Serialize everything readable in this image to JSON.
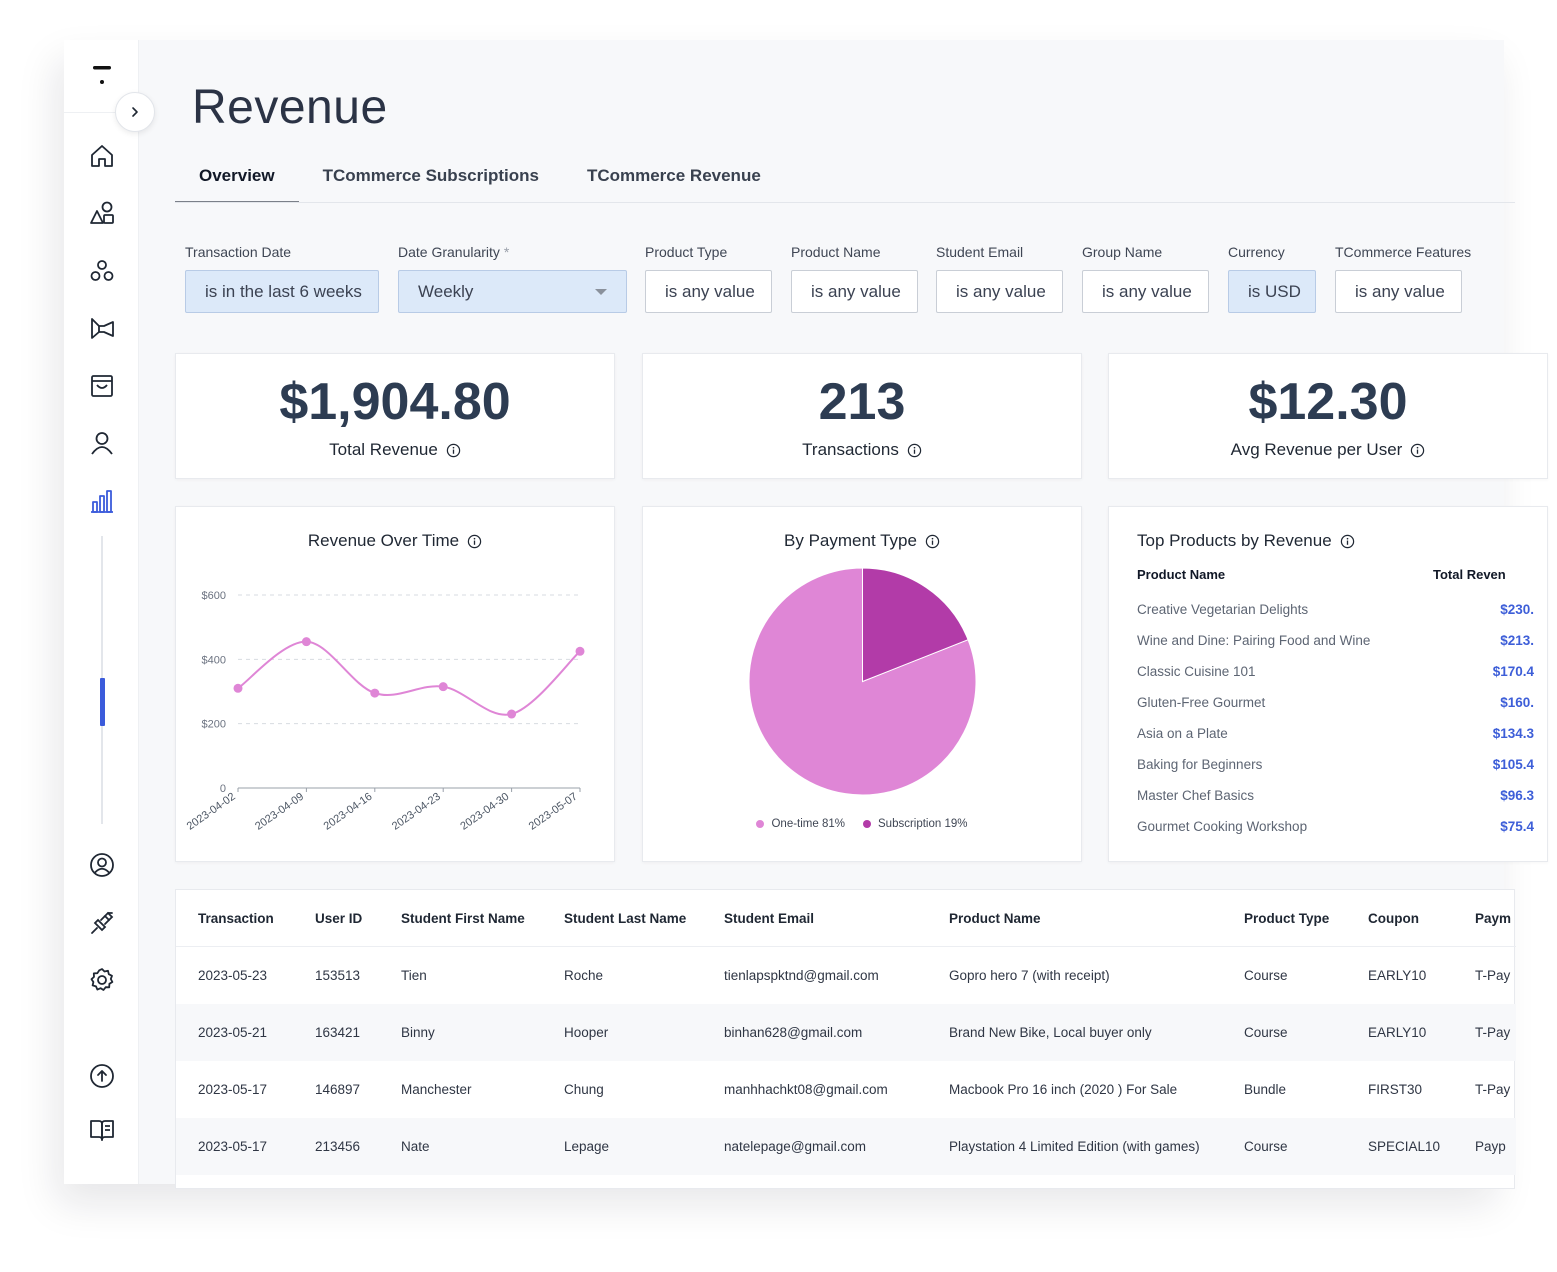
{
  "page": {
    "title": "Revenue"
  },
  "tabs": [
    {
      "label": "Overview",
      "active": true
    },
    {
      "label": "TCommerce Subscriptions",
      "active": false
    },
    {
      "label": "TCommerce Revenue",
      "active": false
    }
  ],
  "filters": [
    {
      "label": "Transaction Date",
      "required": "",
      "value": "is in the last 6 weeks",
      "active": true
    },
    {
      "label": "Date Granularity",
      "required": "*",
      "value": "Weekly",
      "active": true
    },
    {
      "label": "Product Type",
      "required": "",
      "value": "is any value",
      "active": false
    },
    {
      "label": "Product Name",
      "required": "",
      "value": "is any value",
      "active": false
    },
    {
      "label": "Student Email",
      "required": "",
      "value": "is any value",
      "active": false
    },
    {
      "label": "Group Name",
      "required": "",
      "value": "is any value",
      "active": false
    },
    {
      "label": "Currency",
      "required": "",
      "value": "is USD",
      "active": true
    },
    {
      "label": "TCommerce Features",
      "required": "",
      "value": "is any value",
      "active": false
    }
  ],
  "kpis": [
    {
      "value": "$1,904.80",
      "label": "Total Revenue"
    },
    {
      "value": "213",
      "label": "Transactions"
    },
    {
      "value": "$12.30",
      "label": "Avg Revenue per User"
    }
  ],
  "revenue_chart": {
    "title": "Revenue Over Time"
  },
  "payment_chart": {
    "title": "By Payment Type",
    "legend": [
      {
        "label": "One-time 81%",
        "color": "#df86d6"
      },
      {
        "label": "Subscription 19%",
        "color": "#b23ba8"
      }
    ]
  },
  "chart_data": [
    {
      "type": "line",
      "title": "Revenue Over Time",
      "x": [
        "2023-04-02",
        "2023-04-09",
        "2023-04-16",
        "2023-04-23",
        "2023-04-30",
        "2023-05-07"
      ],
      "values": [
        310,
        455,
        295,
        315,
        230,
        425
      ],
      "ytick_labels": [
        "0",
        "$200",
        "$400",
        "$600"
      ],
      "ylim": [
        0,
        600
      ],
      "grid": true,
      "color": "#df86d6"
    },
    {
      "type": "pie",
      "title": "By Payment Type",
      "categories": [
        "One-time",
        "Subscription"
      ],
      "values": [
        81,
        19
      ],
      "colors": [
        "#df86d6",
        "#b23ba8"
      ]
    }
  ],
  "top_products": {
    "title": "Top Products by Revenue",
    "col_name": "Product Name",
    "col_value": "Total Reven",
    "rows": [
      {
        "name": "Creative Vegetarian Delights",
        "value": "$230."
      },
      {
        "name": "Wine and Dine: Pairing Food and Wine",
        "value": "$213."
      },
      {
        "name": "Classic Cuisine 101",
        "value": "$170.4"
      },
      {
        "name": "Gluten-Free Gourmet",
        "value": "$160."
      },
      {
        "name": "Asia on a Plate",
        "value": "$134.3"
      },
      {
        "name": "Baking for Beginners",
        "value": "$105.4"
      },
      {
        "name": "Master Chef Basics",
        "value": "$96.3"
      },
      {
        "name": "Gourmet Cooking Workshop",
        "value": "$75.4"
      }
    ]
  },
  "transactions": {
    "columns": [
      "Transaction",
      "User ID",
      "Student First Name",
      "Student Last Name",
      "Student Email",
      "Product Name",
      "Product Type",
      "Coupon",
      "Paym"
    ],
    "rows": [
      [
        "2023-05-23",
        "153513",
        "Tien",
        "Roche",
        "tienlapspktnd@gmail.com",
        "Gopro hero 7 (with receipt)",
        "Course",
        "EARLY10",
        "T-Pay"
      ],
      [
        "2023-05-21",
        "163421",
        "Binny",
        "Hooper",
        "binhan628@gmail.com",
        "Brand New Bike, Local buyer only",
        "Course",
        "EARLY10",
        "T-Pay"
      ],
      [
        "2023-05-17",
        "146897",
        "Manchester",
        "Chung",
        "manhhachkt08@gmail.com",
        "Macbook Pro 16 inch (2020 ) For Sale",
        "Bundle",
        "FIRST30",
        "T-Pay"
      ],
      [
        "2023-05-17",
        "213456",
        "Nate",
        "Lepage",
        "natelepage@gmail.com",
        "Playstation 4 Limited Edition (with games)",
        "Course",
        "SPECIAL10",
        "Payp"
      ]
    ]
  },
  "icons": {
    "sidebar": [
      "home-icon",
      "shapes-icon",
      "community-icon",
      "megaphone-icon",
      "inbox-icon",
      "user-icon",
      "analytics-icon",
      "account-circle-icon",
      "plugin-icon",
      "settings-icon",
      "upload-icon",
      "book-icon"
    ],
    "accent": "#3b5bdb"
  }
}
